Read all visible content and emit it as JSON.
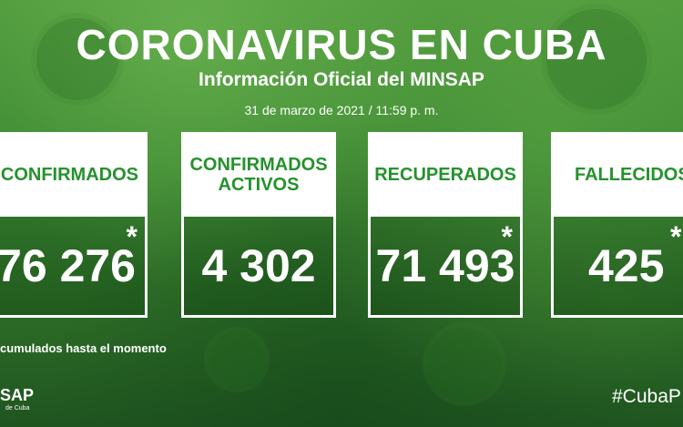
{
  "header": {
    "title": "CORONAVIRUS EN CUBA",
    "subtitle": "Información Oficial del MINSAP",
    "date": "31 de marzo de 2021 / 11:59 p. m."
  },
  "cards": [
    {
      "label": "CONFIRMADOS",
      "value": "76 276",
      "marker": "*"
    },
    {
      "label": "CONFIRMADOS ACTIVOS",
      "value": "4 302",
      "marker": ""
    },
    {
      "label": "RECUPERADOS",
      "value": "71 493",
      "marker": "*"
    },
    {
      "label": "FALLECIDOS",
      "value": "425",
      "marker": "*"
    }
  ],
  "footnote": "cumulados hasta el momento",
  "footer": {
    "logo_text": "SAP",
    "logo_subtext": "de Cuba",
    "hashtag": "#CubaP"
  },
  "colors": {
    "background": "#3d8a32",
    "card_label": "#25922d",
    "text": "#ffffff"
  }
}
